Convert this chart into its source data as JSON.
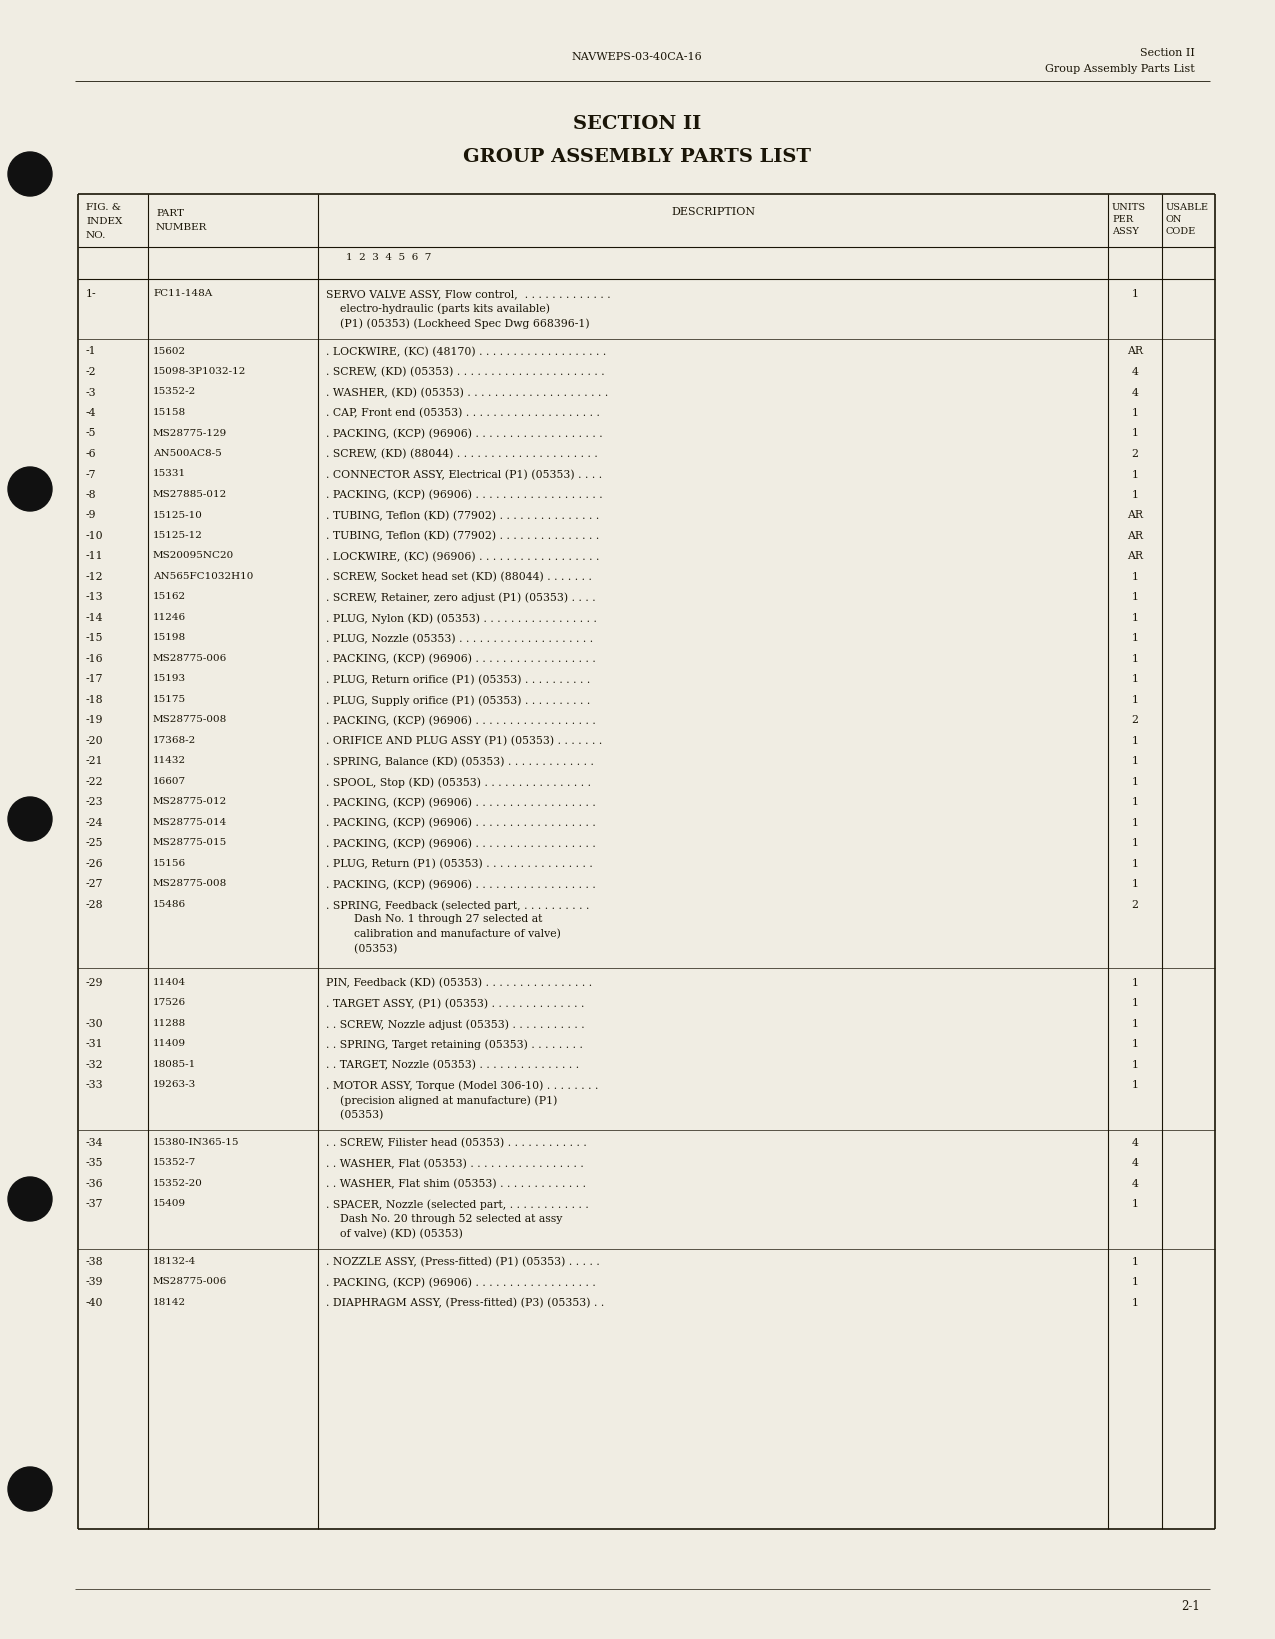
{
  "bg_color": "#f0ede3",
  "text_color": "#1a1507",
  "header_doc_num": "NAVWEPS-03-40CA-16",
  "header_section": "Section II",
  "header_section_sub": "Group Assembly Parts List",
  "section_title": "SECTION II",
  "section_subtitle": "GROUP ASSEMBLY PARTS LIST",
  "footer_page": "2-1",
  "rows": [
    {
      "fig": "1-",
      "part": "FC11-148A",
      "lines": [
        "SERVO VALVE ASSY, Flow control,  . . . . . . . . . . . . .",
        "    electro-hydraulic (parts kits available)",
        "    (P1) (05353) (Lockheed Spec Dwg 668396-1)"
      ],
      "units": "1"
    },
    {
      "fig": "-1",
      "part": "15602",
      "lines": [
        ". LOCKWIRE, (KC) (48170) . . . . . . . . . . . . . . . . . . ."
      ],
      "units": "AR"
    },
    {
      "fig": "-2",
      "part": "15098-3P1032-12",
      "lines": [
        ". SCREW, (KD) (05353) . . . . . . . . . . . . . . . . . . . . . ."
      ],
      "units": "4"
    },
    {
      "fig": "-3",
      "part": "15352-2",
      "lines": [
        ". WASHER, (KD) (05353) . . . . . . . . . . . . . . . . . . . . ."
      ],
      "units": "4"
    },
    {
      "fig": "-4",
      "part": "15158",
      "lines": [
        ". CAP, Front end (05353) . . . . . . . . . . . . . . . . . . . ."
      ],
      "units": "1"
    },
    {
      "fig": "-5",
      "part": "MS28775-129",
      "lines": [
        ". PACKING, (KCP) (96906) . . . . . . . . . . . . . . . . . . ."
      ],
      "units": "1"
    },
    {
      "fig": "-6",
      "part": "AN500AC8-5",
      "lines": [
        ". SCREW, (KD) (88044) . . . . . . . . . . . . . . . . . . . . ."
      ],
      "units": "2"
    },
    {
      "fig": "-7",
      "part": "15331",
      "lines": [
        ". CONNECTOR ASSY, Electrical (P1) (05353) . . . ."
      ],
      "units": "1"
    },
    {
      "fig": "-8",
      "part": "MS27885-012",
      "lines": [
        ". PACKING, (KCP) (96906) . . . . . . . . . . . . . . . . . . ."
      ],
      "units": "1"
    },
    {
      "fig": "-9",
      "part": "15125-10",
      "lines": [
        ". TUBING, Teflon (KD) (77902) . . . . . . . . . . . . . . ."
      ],
      "units": "AR"
    },
    {
      "fig": "-10",
      "part": "15125-12",
      "lines": [
        ". TUBING, Teflon (KD) (77902) . . . . . . . . . . . . . . ."
      ],
      "units": "AR"
    },
    {
      "fig": "-11",
      "part": "MS20095NC20",
      "lines": [
        ". LOCKWIRE, (KC) (96906) . . . . . . . . . . . . . . . . . ."
      ],
      "units": "AR"
    },
    {
      "fig": "-12",
      "part": "AN565FC1032H10",
      "lines": [
        ". SCREW, Socket head set (KD) (88044) . . . . . . ."
      ],
      "units": "1"
    },
    {
      "fig": "-13",
      "part": "15162",
      "lines": [
        ". SCREW, Retainer, zero adjust (P1) (05353) . . . ."
      ],
      "units": "1"
    },
    {
      "fig": "-14",
      "part": "11246",
      "lines": [
        ". PLUG, Nylon (KD) (05353) . . . . . . . . . . . . . . . . ."
      ],
      "units": "1"
    },
    {
      "fig": "-15",
      "part": "15198",
      "lines": [
        ". PLUG, Nozzle (05353) . . . . . . . . . . . . . . . . . . . ."
      ],
      "units": "1"
    },
    {
      "fig": "-16",
      "part": "MS28775-006",
      "lines": [
        ". PACKING, (KCP) (96906) . . . . . . . . . . . . . . . . . ."
      ],
      "units": "1"
    },
    {
      "fig": "-17",
      "part": "15193",
      "lines": [
        ". PLUG, Return orifice (P1) (05353) . . . . . . . . . ."
      ],
      "units": "1"
    },
    {
      "fig": "-18",
      "part": "15175",
      "lines": [
        ". PLUG, Supply orifice (P1) (05353) . . . . . . . . . ."
      ],
      "units": "1"
    },
    {
      "fig": "-19",
      "part": "MS28775-008",
      "lines": [
        ". PACKING, (KCP) (96906) . . . . . . . . . . . . . . . . . ."
      ],
      "units": "2"
    },
    {
      "fig": "-20",
      "part": "17368-2",
      "lines": [
        ". ORIFICE AND PLUG ASSY (P1) (05353) . . . . . . ."
      ],
      "units": "1"
    },
    {
      "fig": "-21",
      "part": "11432",
      "lines": [
        ". SPRING, Balance (KD) (05353) . . . . . . . . . . . . ."
      ],
      "units": "1"
    },
    {
      "fig": "-22",
      "part": "16607",
      "lines": [
        ". SPOOL, Stop (KD) (05353) . . . . . . . . . . . . . . . ."
      ],
      "units": "1"
    },
    {
      "fig": "-23",
      "part": "MS28775-012",
      "lines": [
        ". PACKING, (KCP) (96906) . . . . . . . . . . . . . . . . . ."
      ],
      "units": "1"
    },
    {
      "fig": "-24",
      "part": "MS28775-014",
      "lines": [
        ". PACKING, (KCP) (96906) . . . . . . . . . . . . . . . . . ."
      ],
      "units": "1"
    },
    {
      "fig": "-25",
      "part": "MS28775-015",
      "lines": [
        ". PACKING, (KCP) (96906) . . . . . . . . . . . . . . . . . ."
      ],
      "units": "1"
    },
    {
      "fig": "-26",
      "part": "15156",
      "lines": [
        ". PLUG, Return (P1) (05353) . . . . . . . . . . . . . . . ."
      ],
      "units": "1"
    },
    {
      "fig": "-27",
      "part": "MS28775-008",
      "lines": [
        ". PACKING, (KCP) (96906) . . . . . . . . . . . . . . . . . ."
      ],
      "units": "1"
    },
    {
      "fig": "-28",
      "part": "15486",
      "lines": [
        ". SPRING, Feedback (selected part, . . . . . . . . . .",
        "        Dash No. 1 through 27 selected at",
        "        calibration and manufacture of valve)",
        "        (05353)"
      ],
      "units": "2"
    },
    {
      "fig": "-29",
      "part": "11404",
      "lines": [
        "PIN, Feedback (KD) (05353) . . . . . . . . . . . . . . . ."
      ],
      "units": "1"
    },
    {
      "fig": "",
      "part": "17526",
      "lines": [
        ". TARGET ASSY, (P1) (05353) . . . . . . . . . . . . . ."
      ],
      "units": "1"
    },
    {
      "fig": "-30",
      "part": "11288",
      "lines": [
        ". . SCREW, Nozzle adjust (05353) . . . . . . . . . . ."
      ],
      "units": "1"
    },
    {
      "fig": "-31",
      "part": "11409",
      "lines": [
        ". . SPRING, Target retaining (05353) . . . . . . . ."
      ],
      "units": "1"
    },
    {
      "fig": "-32",
      "part": "18085-1",
      "lines": [
        ". . TARGET, Nozzle (05353) . . . . . . . . . . . . . . ."
      ],
      "units": "1"
    },
    {
      "fig": "-33",
      "part": "19263-3",
      "lines": [
        ". MOTOR ASSY, Torque (Model 306-10) . . . . . . . .",
        "    (precision aligned at manufacture) (P1)",
        "    (05353)"
      ],
      "units": "1"
    },
    {
      "fig": "-34",
      "part": "15380-IN365-15",
      "lines": [
        ". . SCREW, Filister head (05353) . . . . . . . . . . . ."
      ],
      "units": "4"
    },
    {
      "fig": "-35",
      "part": "15352-7",
      "lines": [
        ". . WASHER, Flat (05353) . . . . . . . . . . . . . . . . ."
      ],
      "units": "4"
    },
    {
      "fig": "-36",
      "part": "15352-20",
      "lines": [
        ". . WASHER, Flat shim (05353) . . . . . . . . . . . . ."
      ],
      "units": "4"
    },
    {
      "fig": "-37",
      "part": "15409",
      "lines": [
        ". SPACER, Nozzle (selected part, . . . . . . . . . . . .",
        "    Dash No. 20 through 52 selected at assy",
        "    of valve) (KD) (05353)"
      ],
      "units": "1"
    },
    {
      "fig": "-38",
      "part": "18132-4",
      "lines": [
        ". NOZZLE ASSY, (Press-fitted) (P1) (05353) . . . . ."
      ],
      "units": "1"
    },
    {
      "fig": "-39",
      "part": "MS28775-006",
      "lines": [
        ". PACKING, (KCP) (96906) . . . . . . . . . . . . . . . . . ."
      ],
      "units": "1"
    },
    {
      "fig": "-40",
      "part": "18142",
      "lines": [
        ". DIAPHRAGM ASSY, (Press-fitted) (P3) (05353) . ."
      ],
      "units": "1"
    }
  ]
}
